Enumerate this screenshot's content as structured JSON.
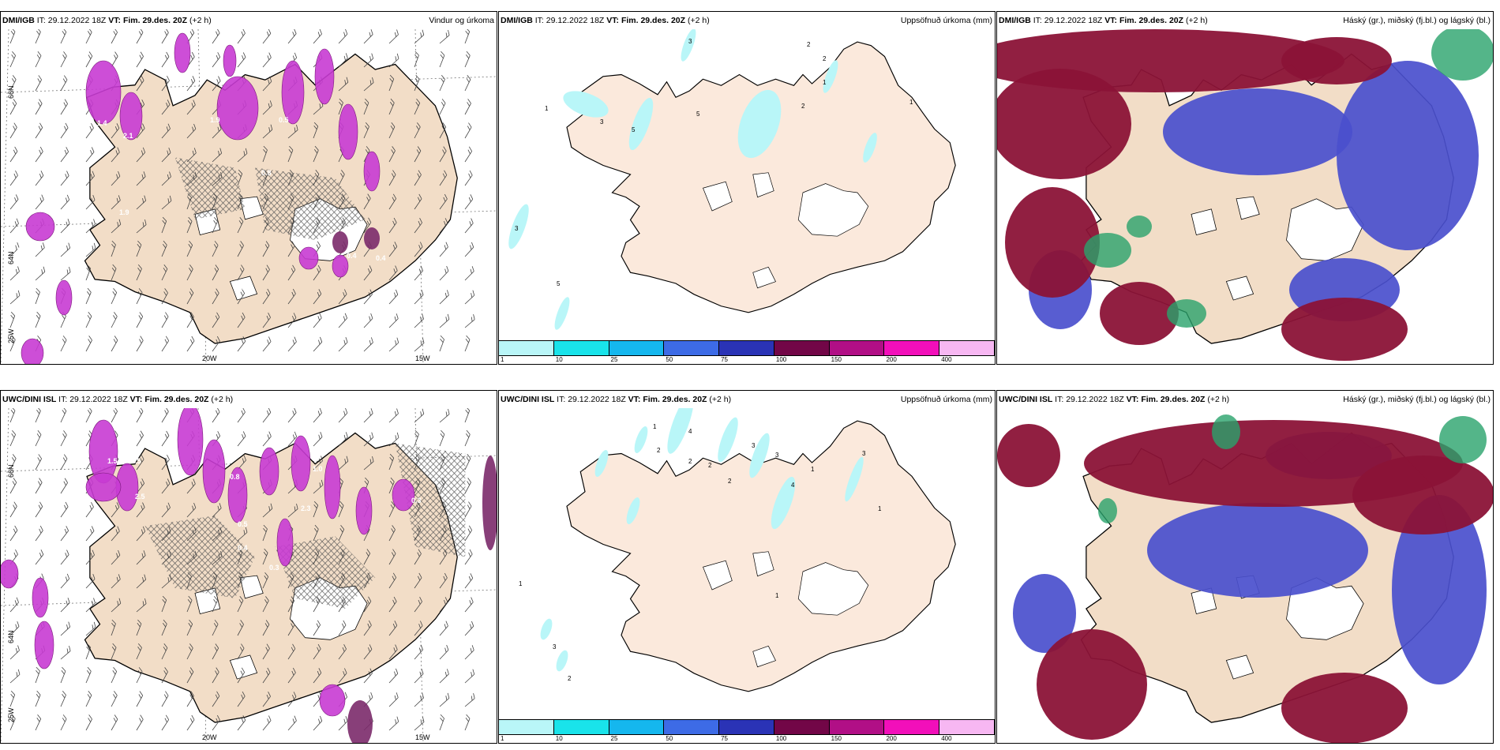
{
  "panels": [
    {
      "model": "DMI/IGB",
      "it_label": "IT:",
      "it": "29.12.2022 18Z",
      "vt_label": "VT:",
      "vt": "Fim. 29.des. 20Z",
      "lead": "(+2 h)",
      "title": "Vindur og úrkoma",
      "kind": "wind"
    },
    {
      "model": "DMI/IGB",
      "it_label": "IT:",
      "it": "29.12.2022 18Z",
      "vt_label": "VT:",
      "vt": "Fim. 29.des. 20Z",
      "lead": "(+2 h)",
      "title": "Uppsöfnuð úrkoma (mm)",
      "kind": "accum"
    },
    {
      "model": "DMI/IGB",
      "it_label": "IT:",
      "it": "29.12.2022 18Z",
      "vt_label": "VT:",
      "vt": "Fim. 29.des. 20Z",
      "lead": "(+2 h)",
      "title": "Háský (gr.), miðský (fj.bl.) og lágský (bl.)",
      "kind": "clouds"
    },
    {
      "model": "UWC/DINI ISL",
      "it_label": "IT:",
      "it": "29.12.2022 18Z",
      "vt_label": "VT:",
      "vt": "Fim. 29.des. 20Z",
      "lead": "(+2 h)",
      "title": "",
      "kind": "wind"
    },
    {
      "model": "UWC/DINI ISL",
      "it_label": "IT:",
      "it": "29.12.2022 18Z",
      "vt_label": "VT:",
      "vt": "Fim. 29.des. 20Z",
      "lead": "(+2 h)",
      "title": "Uppsöfnuð úrkoma (mm)",
      "kind": "accum"
    },
    {
      "model": "UWC/DINI ISL",
      "it_label": "IT:",
      "it": "29.12.2022 18Z",
      "vt_label": "VT:",
      "vt": "Fim. 29.des. 20Z",
      "lead": "(+2 h)",
      "title": "Háský (gr.), miðský (fj.bl.) og lágský (bl.)",
      "kind": "clouds"
    }
  ],
  "wind_ticks": {
    "lat": [
      "66N",
      "64N",
      "25W"
    ],
    "lon": [
      "20W",
      "15W"
    ]
  },
  "precip_labels_top": [
    "1.9",
    "1.4",
    "2.1",
    "0.5",
    "0.8",
    "0.4",
    "0.4",
    "3.0",
    "1.6",
    "1.5",
    "2.9",
    "1.5",
    "1.9"
  ],
  "precip_labels_bottom": [
    "2.0",
    "1.5",
    "0.5",
    "0.8",
    "0.5",
    "0.3",
    "0.4",
    "1.0",
    "2.5",
    "2.3",
    "0.5",
    "0.3"
  ],
  "accum_labels_top": [
    "3",
    "1",
    "2",
    "3",
    "5",
    "2",
    "1",
    "2",
    "5",
    "1",
    "3",
    "5"
  ],
  "accum_labels_bottom": [
    "1",
    "2",
    "4",
    "3",
    "2",
    "2",
    "2",
    "3",
    "1",
    "3",
    "4",
    "1",
    "1",
    "3",
    "2",
    "1"
  ],
  "colorbar": {
    "labels": [
      "1",
      "10",
      "25",
      "50",
      "75",
      "100",
      "150",
      "200",
      "400"
    ],
    "colors": [
      "#b9f6f8",
      "#19e3ea",
      "#15b7ee",
      "#3d6be6",
      "#2a33b6",
      "#720647",
      "#b10f86",
      "#f20fba",
      "#f7b7f2"
    ]
  },
  "colors": {
    "land": "#f2ddc7",
    "accum_land": "#fbe9dc",
    "precip": "#c83bd3",
    "precip_dark": "#7b2a6a",
    "cloud_high": "#29a26c",
    "cloud_mid": "#8b1337",
    "cloud_low": "#4a4fcd"
  }
}
